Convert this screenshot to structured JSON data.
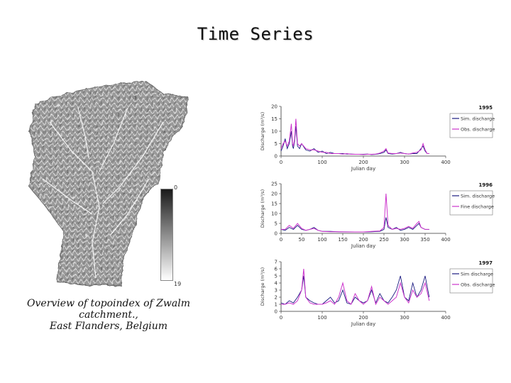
{
  "slide": {
    "title": "Time Series",
    "caption_lines": [
      "Overview of topoindex of Zwalm",
      "catchment.,",
      "East Flanders, Belgium"
    ]
  },
  "map": {
    "colorbar_top_label": "0",
    "colorbar_bottom_label": "19",
    "colors": {
      "dark": "#1a1a1a",
      "light": "#ffffff"
    }
  },
  "chart_data": [
    {
      "type": "line",
      "year_label": "1995",
      "xlabel": "Julian day",
      "ylabel": "Discharge (m³/s)",
      "xlim": [
        0,
        400
      ],
      "ylim": [
        0,
        20
      ],
      "xticks": [
        0,
        100,
        200,
        300,
        400
      ],
      "yticks": [
        0,
        5,
        10,
        15,
        20
      ],
      "legend_placement": "right",
      "series": [
        {
          "name": "Sim. discharge",
          "color": "#1a1a80",
          "x": [
            0,
            5,
            10,
            15,
            20,
            25,
            28,
            30,
            33,
            36,
            40,
            45,
            50,
            60,
            70,
            80,
            90,
            100,
            110,
            120,
            130,
            140,
            150,
            160,
            170,
            180,
            190,
            200,
            210,
            220,
            230,
            240,
            250,
            255,
            260,
            270,
            280,
            290,
            300,
            310,
            320,
            330,
            340,
            345,
            350,
            355,
            360
          ],
          "y": [
            2,
            4,
            7,
            3,
            5,
            10,
            4,
            3,
            6,
            12,
            4,
            3,
            5,
            2.5,
            2,
            3,
            1.5,
            2,
            1,
            1.5,
            1,
            1,
            1,
            0.8,
            0.8,
            0.7,
            0.7,
            0.7,
            0.8,
            0.6,
            0.7,
            1,
            1.5,
            2.5,
            1,
            0.8,
            1,
            1.5,
            1,
            0.8,
            1,
            1,
            3,
            4,
            2,
            1,
            1
          ]
        },
        {
          "name": "Obs. discharge",
          "color": "#cc33cc",
          "x": [
            0,
            5,
            10,
            15,
            20,
            25,
            28,
            30,
            33,
            36,
            40,
            45,
            50,
            60,
            70,
            80,
            90,
            100,
            110,
            120,
            130,
            140,
            150,
            160,
            170,
            180,
            190,
            200,
            210,
            220,
            230,
            240,
            250,
            255,
            260,
            270,
            280,
            290,
            300,
            310,
            320,
            330,
            340,
            345,
            350,
            355,
            360
          ],
          "y": [
            3,
            5,
            6,
            4,
            6,
            13,
            5,
            4,
            7,
            15,
            5,
            4,
            5,
            3,
            2.5,
            2.5,
            2,
            1.5,
            1.5,
            1,
            1,
            1,
            0.8,
            1,
            0.7,
            0.7,
            0.7,
            0.6,
            0.7,
            0.7,
            0.8,
            1.2,
            2,
            3,
            1.2,
            1,
            1,
            1.2,
            1,
            0.8,
            1.2,
            1.5,
            2.5,
            5,
            2.5,
            1,
            1
          ]
        }
      ]
    },
    {
      "type": "line",
      "year_label": "1996",
      "xlabel": "Julian day",
      "ylabel": "Discharge (m³/s)",
      "xlim": [
        0,
        400
      ],
      "ylim": [
        0,
        25
      ],
      "xticks": [
        0,
        50,
        100,
        150,
        200,
        250,
        300,
        350,
        400
      ],
      "yticks": [
        0,
        5,
        10,
        15,
        20,
        25
      ],
      "legend_placement": "right",
      "series": [
        {
          "name": "Sim. discharge",
          "color": "#1a1a80",
          "x": [
            0,
            10,
            20,
            30,
            40,
            50,
            60,
            70,
            80,
            90,
            100,
            120,
            140,
            160,
            180,
            200,
            220,
            240,
            250,
            255,
            260,
            270,
            280,
            290,
            300,
            310,
            320,
            330,
            335,
            340,
            350,
            360
          ],
          "y": [
            2,
            1.5,
            3,
            2,
            4,
            2,
            1.5,
            2,
            3,
            1.5,
            1,
            1,
            0.8,
            0.8,
            0.7,
            0.7,
            0.8,
            1,
            2,
            8,
            3,
            2,
            3,
            1.5,
            2,
            3,
            2,
            4,
            5,
            3,
            2,
            2
          ]
        },
        {
          "name": "Fine discharge",
          "color": "#cc33cc",
          "x": [
            0,
            10,
            20,
            30,
            40,
            50,
            60,
            70,
            80,
            90,
            100,
            120,
            140,
            160,
            180,
            200,
            220,
            240,
            250,
            255,
            260,
            270,
            280,
            290,
            300,
            310,
            320,
            330,
            335,
            340,
            350,
            360
          ],
          "y": [
            2,
            2,
            4,
            2.5,
            5,
            2.5,
            1.5,
            2,
            2.5,
            1.5,
            1,
            0.8,
            0.8,
            0.7,
            0.7,
            0.7,
            1,
            1.2,
            3,
            20,
            4,
            2,
            2.5,
            2,
            2.5,
            3.5,
            2.5,
            5,
            6,
            3,
            2,
            2
          ]
        }
      ]
    },
    {
      "type": "line",
      "year_label": "1997",
      "xlabel": "Julian day",
      "ylabel": "Discharge (m³/s)",
      "xlim": [
        0,
        400
      ],
      "ylim": [
        0,
        7
      ],
      "xticks": [
        0,
        100,
        200,
        300,
        400
      ],
      "yticks": [
        0,
        1,
        2,
        3,
        4,
        5,
        6,
        7
      ],
      "legend_placement": "right",
      "series": [
        {
          "name": "Sim discharge",
          "color": "#1a1a80",
          "x": [
            0,
            10,
            20,
            30,
            40,
            50,
            55,
            60,
            70,
            80,
            90,
            100,
            110,
            120,
            130,
            140,
            150,
            160,
            170,
            180,
            190,
            200,
            210,
            220,
            230,
            240,
            250,
            260,
            270,
            280,
            290,
            300,
            310,
            320,
            330,
            340,
            350,
            360
          ],
          "y": [
            1.2,
            1,
            1.5,
            1.2,
            2,
            3,
            5,
            2,
            1.5,
            1.2,
            1,
            1,
            1.5,
            2,
            1.2,
            1.5,
            3,
            1.2,
            1,
            2,
            1.5,
            1.2,
            1.5,
            3,
            1.2,
            2.5,
            1.5,
            1.2,
            2,
            3,
            5,
            2,
            1.5,
            4,
            2,
            3,
            5,
            2
          ]
        },
        {
          "name": "Obs. discharge",
          "color": "#cc33cc",
          "x": [
            0,
            10,
            20,
            30,
            40,
            50,
            55,
            60,
            70,
            80,
            90,
            100,
            110,
            120,
            130,
            140,
            150,
            160,
            170,
            180,
            190,
            200,
            210,
            220,
            230,
            240,
            250,
            260,
            270,
            280,
            290,
            300,
            310,
            320,
            330,
            340,
            350,
            360
          ],
          "y": [
            1,
            1,
            1.2,
            1,
            1.5,
            3,
            6,
            2,
            1.2,
            1,
            1,
            1,
            1.2,
            1.5,
            1,
            2,
            4,
            1.5,
            1,
            2.5,
            1.5,
            1,
            1.5,
            3.5,
            1,
            2,
            1.5,
            1,
            1.5,
            2,
            4,
            2,
            1.2,
            3,
            2,
            2.5,
            4,
            1.5
          ]
        }
      ]
    }
  ]
}
